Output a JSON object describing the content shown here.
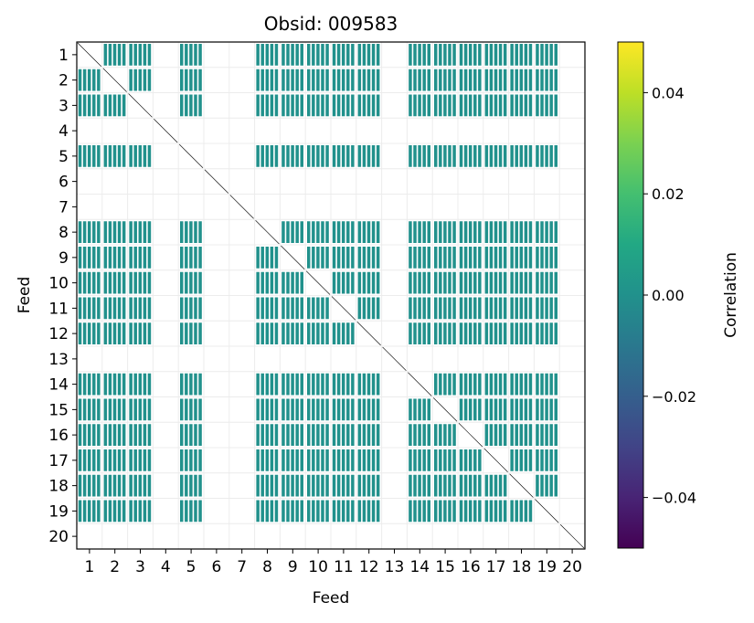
{
  "chart_data": {
    "type": "heatmap",
    "title": "Obsid: 009583",
    "xlabel": "Feed",
    "ylabel": "Feed",
    "feeds": [
      1,
      2,
      3,
      4,
      5,
      6,
      7,
      8,
      9,
      10,
      11,
      12,
      13,
      14,
      15,
      16,
      17,
      18,
      19,
      20
    ],
    "x_tick_labels": [
      "1",
      "2",
      "3",
      "4",
      "5",
      "6",
      "7",
      "8",
      "9",
      "10",
      "11",
      "12",
      "13",
      "14",
      "15",
      "16",
      "17",
      "18",
      "19",
      "20"
    ],
    "y_tick_labels": [
      "1",
      "2",
      "3",
      "4",
      "5",
      "6",
      "7",
      "8",
      "9",
      "10",
      "11",
      "12",
      "13",
      "14",
      "15",
      "16",
      "17",
      "18",
      "19",
      "20"
    ],
    "active_feeds": [
      1,
      2,
      3,
      5,
      8,
      9,
      10,
      11,
      12,
      14,
      15,
      16,
      17,
      18,
      19
    ],
    "inactive_feeds": [
      4,
      6,
      7,
      13,
      20
    ],
    "cell_value_estimate": 0.0,
    "grid": true,
    "colorbar": {
      "label": "Correlation",
      "colormap": "viridis",
      "min": -0.05,
      "max": 0.05,
      "ticks": [
        0.04,
        0.02,
        0.0,
        -0.02,
        -0.04
      ],
      "tick_labels": [
        "0.04",
        "0.02",
        "0.00",
        "−0.02",
        "−0.04"
      ]
    },
    "colors": {
      "cell": "#21918c",
      "grid": "#ececec",
      "diagonal": "#000000"
    }
  }
}
